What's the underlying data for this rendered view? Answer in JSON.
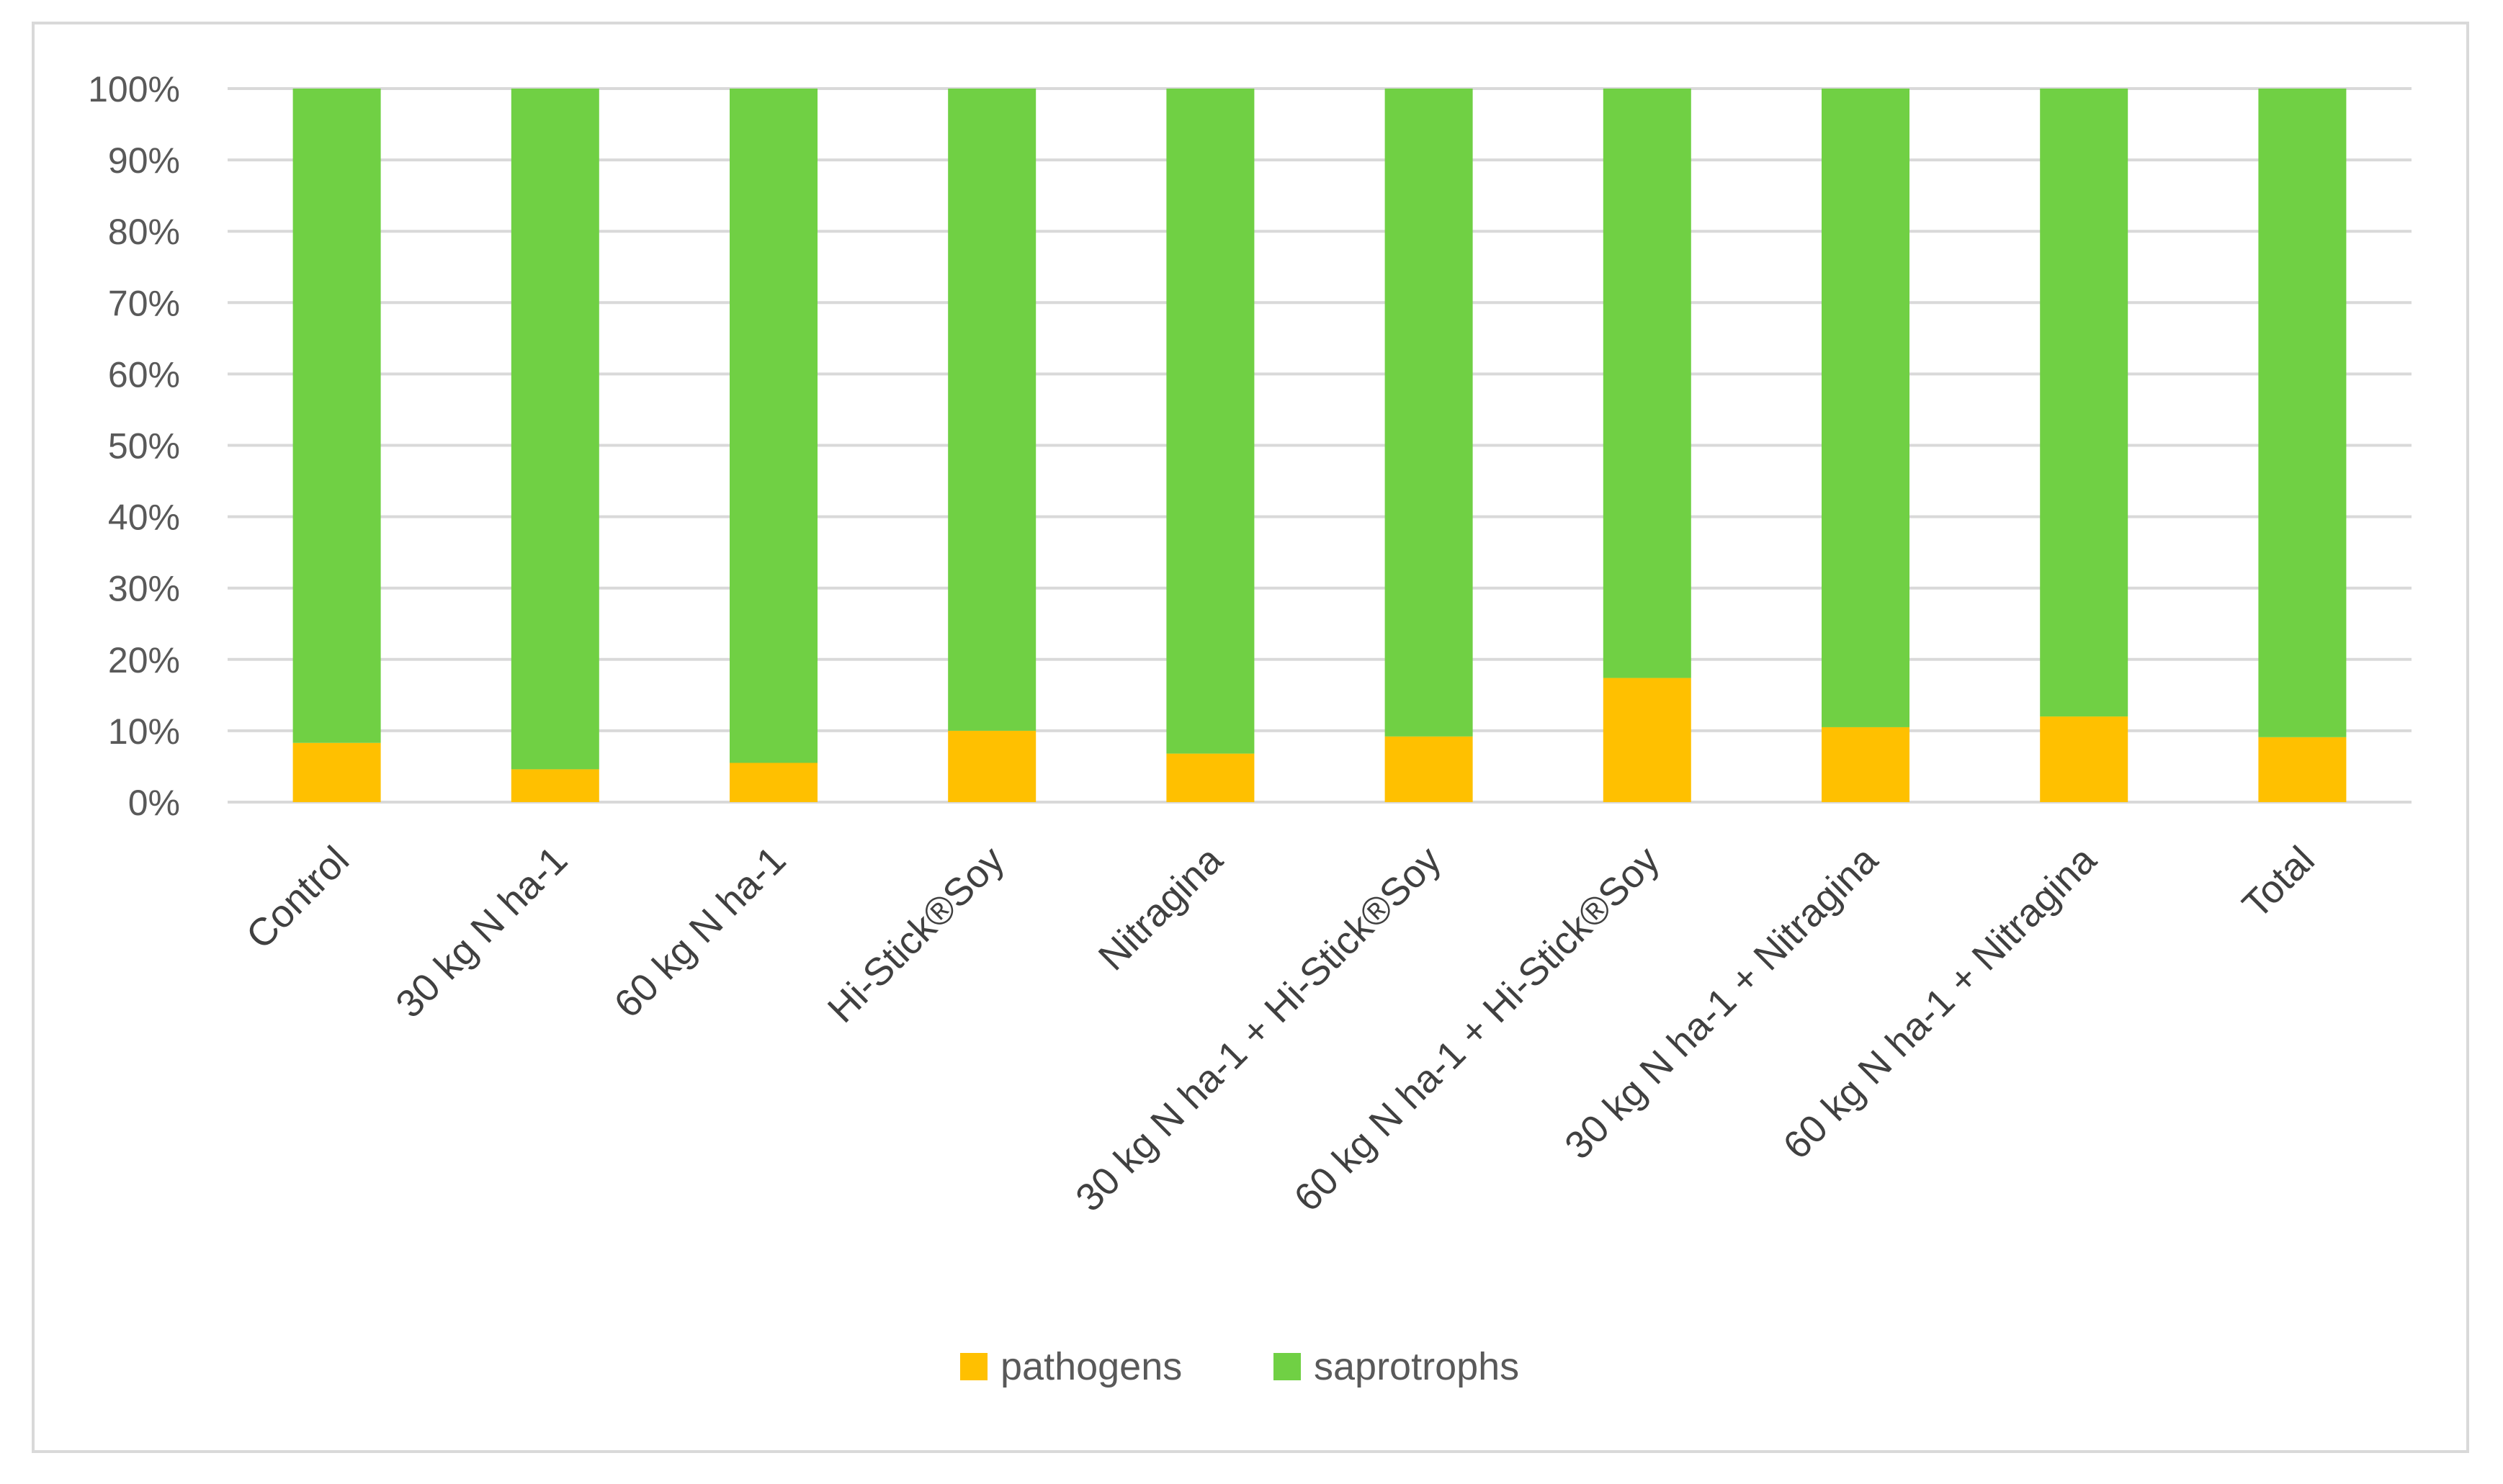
{
  "chart_data": {
    "type": "bar",
    "stacked": true,
    "percent": true,
    "categories": [
      "Control",
      "30 kg N ha-1",
      "60 kg N ha-1",
      "Hi-Stick®Soy",
      "Nitragina",
      "30 kg N ha-1 + Hi-Stick®Soy",
      "60 kg N ha-1 + Hi-Stick®Soy",
      "30 kg N ha-1 + Nitragina",
      "60 kg N ha-1 + Nitragina",
      "Total"
    ],
    "series": [
      {
        "name": "pathogens",
        "color": "#ffc000",
        "values": [
          8.3,
          4.6,
          5.5,
          10.0,
          6.8,
          9.2,
          17.4,
          10.5,
          12.0,
          9.1
        ]
      },
      {
        "name": "saprotrophs",
        "color": "#70d044",
        "values": [
          91.7,
          95.4,
          94.5,
          90.0,
          93.2,
          90.8,
          82.6,
          89.5,
          88.0,
          90.9
        ]
      }
    ],
    "yticks": [
      "0%",
      "10%",
      "20%",
      "30%",
      "40%",
      "50%",
      "60%",
      "70%",
      "80%",
      "90%",
      "100%"
    ],
    "ylim": [
      0,
      100
    ],
    "grid": true,
    "legend_position": "bottom",
    "title": "",
    "xlabel": "",
    "ylabel": ""
  }
}
